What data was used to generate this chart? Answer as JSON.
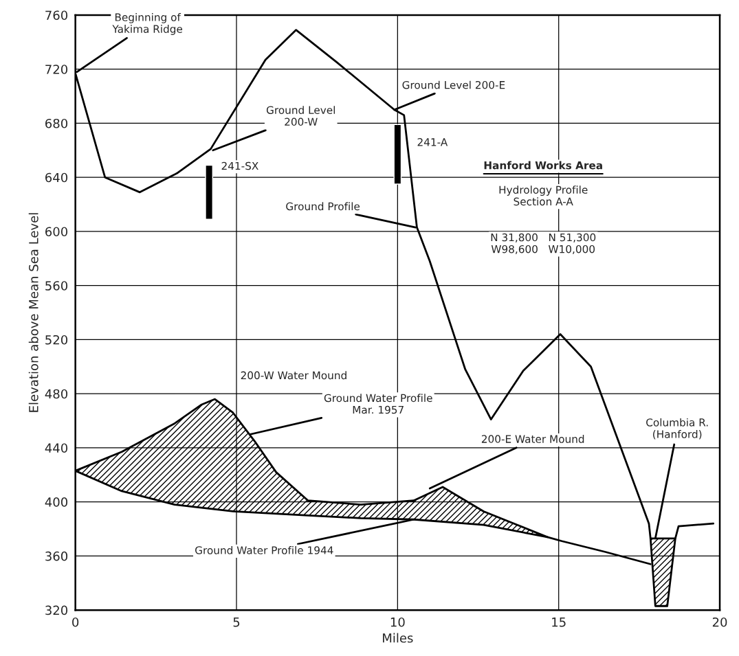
{
  "chart_data": {
    "type": "line",
    "xlabel": "Miles",
    "ylabel": "Elevation above Mean Sea Level",
    "xlim": [
      0,
      20
    ],
    "ylim": [
      320,
      760
    ],
    "xticks": [
      0,
      5,
      10,
      15,
      20
    ],
    "yticks": [
      320,
      360,
      400,
      440,
      480,
      520,
      560,
      600,
      640,
      680,
      720,
      760
    ],
    "grid": true,
    "legend": false,
    "marker": "none",
    "line_style": "solid",
    "series": [
      {
        "color": "#000000",
        "x": [
          0,
          0.92,
          2.0,
          3.15,
          4.2,
          5.9,
          6.85,
          8.12,
          9.9,
          10.2,
          10.6,
          11.0,
          12.1,
          12.9,
          13.9,
          15.05,
          16.0,
          17.8,
          17.85,
          18.0,
          18.37,
          18.62,
          18.72,
          19.8
        ],
        "values": [
          717,
          640,
          629,
          643,
          661,
          727,
          749,
          725,
          690,
          686,
          603,
          578,
          498,
          461,
          497,
          524,
          500,
          384,
          373,
          323,
          323,
          373,
          382,
          384
        ]
      },
      {
        "type": "area",
        "color": "#000000",
        "x": [
          0,
          1.44,
          3.08,
          3.92,
          4.33,
          4.89,
          5.56,
          6.23,
          7.22,
          8.86,
          10.5,
          11.4,
          12.67,
          14.65
        ],
        "values": [
          423,
          437,
          458,
          472,
          476,
          466,
          445,
          422,
          401,
          398,
          401,
          411,
          393,
          374
        ]
      },
      {
        "color": "#000000",
        "x": [
          0,
          1.44,
          3.08,
          4.89,
          7.22,
          8.86,
          10.5,
          12.67,
          14.65,
          15.1,
          16.45,
          17.85
        ],
        "values": [
          423,
          408,
          398,
          393,
          390,
          388,
          387,
          383,
          374,
          371,
          363,
          354
        ]
      },
      {
        "type": "area",
        "color": "#000000",
        "x": [
          17.85,
          18.0,
          18.37,
          18.62
        ],
        "values": [
          373,
          373,
          373,
          373
        ]
      },
      {
        "type": "bar",
        "color": "#000000",
        "x": [
          4.15,
          10.0
        ],
        "base": [
          609,
          635
        ],
        "values": [
          40,
          44
        ]
      }
    ],
    "annotations": [
      {
        "text": "Beginning of\nYakima Ridge",
        "x": 0.05,
        "y": 718
      },
      {
        "text": "Ground Level\n200-W",
        "x": 4.27,
        "y": 660
      },
      "241-SX",
      {
        "text": "Ground Level 200-E",
        "x": 9.9,
        "y": 690
      },
      "241-A",
      {
        "text": "Ground Profile",
        "x": 10.56,
        "y": 603
      },
      "Hanford Works Area",
      "Hydrology Profile\nSection A-A",
      "N 31,800   N 51,300\nW98,600   W10,000",
      "200-W Water Mound",
      {
        "text": "Ground Water Profile\nMar. 1957",
        "x": 5.43,
        "y": 450
      },
      {
        "text": "200-E Water Mound",
        "x": 11.0,
        "y": 410
      },
      {
        "text": "Ground Water Profile 1944",
        "x": 10.5,
        "y": 387
      },
      {
        "text": "Columbia R.\n(Hanford)",
        "x": 18.0,
        "y": 373
      }
    ]
  }
}
